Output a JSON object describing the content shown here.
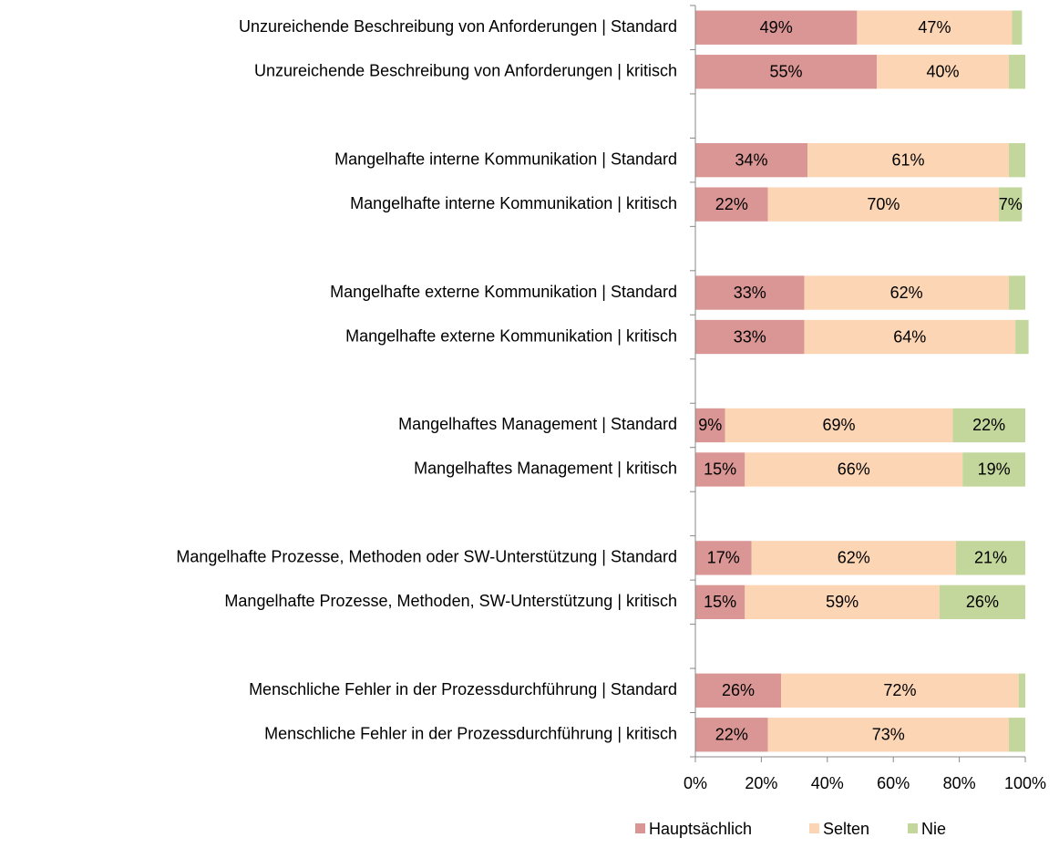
{
  "chart_data": {
    "type": "stacked_bar_horizontal",
    "categories": [
      "Unzureichende Beschreibung von Anforderungen | Standard",
      "Unzureichende Beschreibung von Anforderungen | kritisch",
      null,
      "Mangelhafte interne Kommunikation | Standard",
      "Mangelhafte interne Kommunikation | kritisch",
      null,
      "Mangelhafte externe Kommunikation | Standard",
      "Mangelhafte externe Kommunikation | kritisch",
      null,
      "Mangelhaftes Management | Standard",
      "Mangelhaftes Management | kritisch",
      null,
      "Mangelhafte Prozesse, Methoden oder SW-Unterstützung | Standard",
      "Mangelhafte Prozesse, Methoden, SW-Unterstützung | kritisch",
      null,
      "Menschliche Fehler in der Prozessdurchführung | Standard",
      "Menschliche Fehler in der Prozessdurchführung | kritisch"
    ],
    "series": [
      {
        "name": "Hauptsächlich",
        "color": "#d99694",
        "values": [
          49,
          55,
          null,
          34,
          22,
          null,
          33,
          33,
          null,
          9,
          15,
          null,
          17,
          15,
          null,
          26,
          22
        ],
        "value_labels": [
          "49%",
          "55%",
          null,
          "34%",
          "22%",
          null,
          "33%",
          "33%",
          null,
          "9%",
          "15%",
          null,
          "17%",
          "15%",
          null,
          "26%",
          "22%"
        ]
      },
      {
        "name": "Selten",
        "color": "#fcd5b5",
        "values": [
          47,
          40,
          null,
          61,
          70,
          null,
          62,
          64,
          null,
          69,
          66,
          null,
          62,
          59,
          null,
          72,
          73
        ],
        "value_labels": [
          "47%",
          "40%",
          null,
          "61%",
          "70%",
          null,
          "62%",
          "64%",
          null,
          "69%",
          "66%",
          null,
          "62%",
          "59%",
          null,
          "72%",
          "73%"
        ]
      },
      {
        "name": "Nie",
        "color": "#c3d69b",
        "values": [
          3,
          5,
          null,
          5,
          7,
          null,
          5,
          4,
          null,
          22,
          19,
          null,
          21,
          26,
          null,
          2,
          5
        ],
        "value_labels": [
          null,
          null,
          null,
          null,
          "7%",
          null,
          null,
          null,
          null,
          "22%",
          "19%",
          null,
          "21%",
          "26%",
          null,
          null,
          null
        ]
      }
    ],
    "xlim": [
      0,
      100
    ],
    "xticks": [
      {
        "value": 0,
        "label": "0%"
      },
      {
        "value": 20,
        "label": "20%"
      },
      {
        "value": 40,
        "label": "40%"
      },
      {
        "value": 60,
        "label": "60%"
      },
      {
        "value": 80,
        "label": "80%"
      },
      {
        "value": 100,
        "label": "100%"
      }
    ],
    "legend": "bottom"
  }
}
